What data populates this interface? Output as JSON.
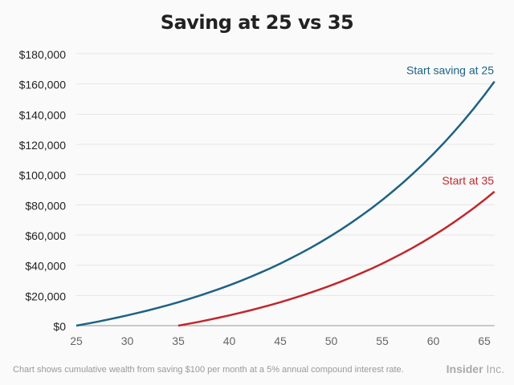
{
  "chart_data": {
    "type": "line",
    "title": "Saving at 25 vs 35",
    "xlabel": "",
    "ylabel": "",
    "xlim": [
      25,
      66
    ],
    "ylim": [
      0,
      180000
    ],
    "x_ticks": [
      25,
      30,
      35,
      40,
      45,
      50,
      55,
      60,
      65
    ],
    "y_ticks": [
      0,
      20000,
      40000,
      60000,
      80000,
      100000,
      120000,
      140000,
      160000,
      180000
    ],
    "y_tick_labels": [
      "$0",
      "$20,000",
      "$40,000",
      "$60,000",
      "$80,000",
      "$100,000",
      "$120,000",
      "$140,000",
      "$160,000",
      "$180,000"
    ],
    "grid": "horizontal",
    "series": [
      {
        "name": "Start saving at 25",
        "color": "#1d6283",
        "start_age": 25,
        "values": [
          0,
          1228,
          2519,
          3875,
          5301,
          6801,
          8377,
          10033,
          11774,
          13604,
          15528,
          17551,
          19676,
          21911,
          24260,
          26729,
          29324,
          32052,
          34920,
          37935,
          41103,
          44434,
          47935,
          51616,
          55484,
          59551,
          63826,
          68319,
          73042,
          78007,
          83226,
          88712,
          94479,
          100541,
          106912,
          113610,
          120650,
          128051,
          135830,
          144008,
          152603,
          161639
        ]
      },
      {
        "name": "Start at 35",
        "color": "#c0272d",
        "start_age": 35,
        "values": [
          0,
          1228,
          2519,
          3875,
          5301,
          6801,
          8377,
          10033,
          11774,
          13604,
          15528,
          17551,
          19676,
          21911,
          24260,
          26729,
          29324,
          32052,
          34920,
          37935,
          41103,
          44434,
          47935,
          51616,
          55484,
          59551,
          63826,
          68319,
          73042,
          78007,
          83226,
          88712
        ]
      }
    ]
  },
  "footer": {
    "note": "Chart shows cumulative wealth from saving $100 per month at a 5% annual compound interest rate.",
    "brand_bold": "Insider",
    "brand_light": " Inc."
  }
}
